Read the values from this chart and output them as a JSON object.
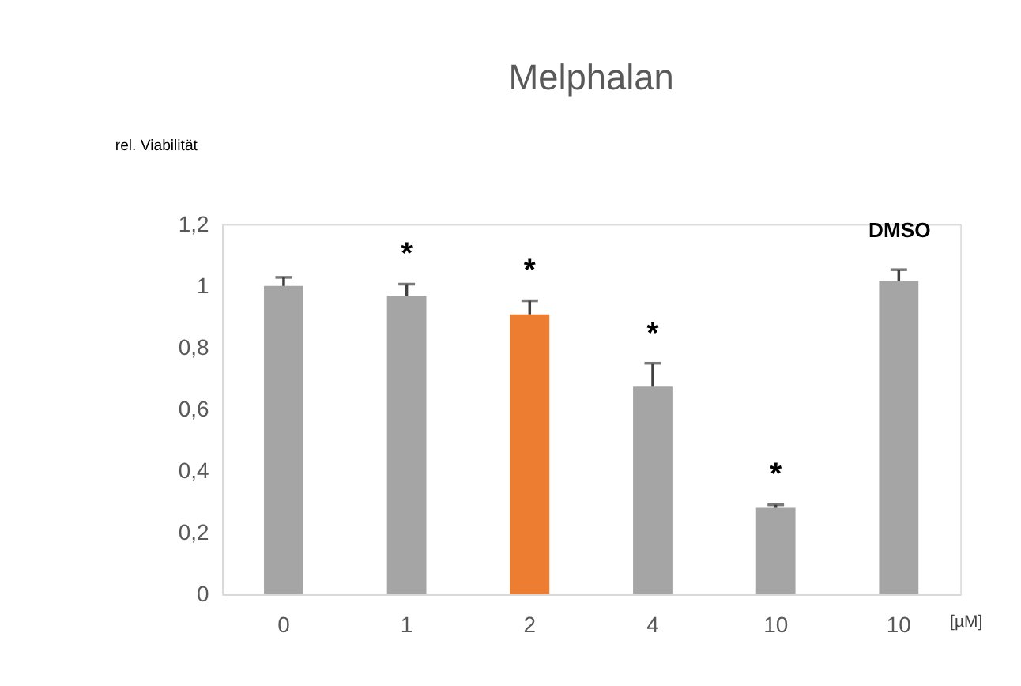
{
  "chart_data": {
    "type": "bar",
    "title": "Melphalan",
    "ylabel": "rel. Viabilität",
    "xlabel": "[µM]",
    "categories": [
      "0",
      "1",
      "2",
      "4",
      "10",
      "10"
    ],
    "values": [
      1.0,
      0.968,
      0.908,
      0.673,
      0.28,
      1.016
    ],
    "colors": [
      "#a5a5a5",
      "#a5a5a5",
      "#ed7d31",
      "#a5a5a5",
      "#a5a5a5",
      "#a5a5a5"
    ],
    "errors": [
      [
        1.0,
        1.028
      ],
      [
        0.968,
        1.006
      ],
      [
        0.908,
        0.952
      ],
      [
        0.673,
        0.749
      ],
      [
        0.28,
        0.29
      ],
      [
        1.016,
        1.053
      ]
    ],
    "annotations": [
      {
        "text": "*",
        "x": "1",
        "y": 1.006
      },
      {
        "text": "*",
        "x": "2",
        "y": 0.952
      },
      {
        "text": "*",
        "x": "4",
        "y": 0.749
      },
      {
        "text": "*",
        "x": "10",
        "y": 0.29
      },
      "DMSO"
    ],
    "ylim": [
      0,
      1.2
    ],
    "yticks": [
      0,
      {
        "value": 0.2,
        "label": "0,2"
      },
      {
        "value": 0.4,
        "label": "0,4"
      },
      {
        "value": 0.6,
        "label": "0,6"
      },
      {
        "value": 0.8,
        "label": "0,8"
      },
      1,
      {
        "value": 1.2,
        "label": "1,2"
      }
    ],
    "grid": false
  }
}
